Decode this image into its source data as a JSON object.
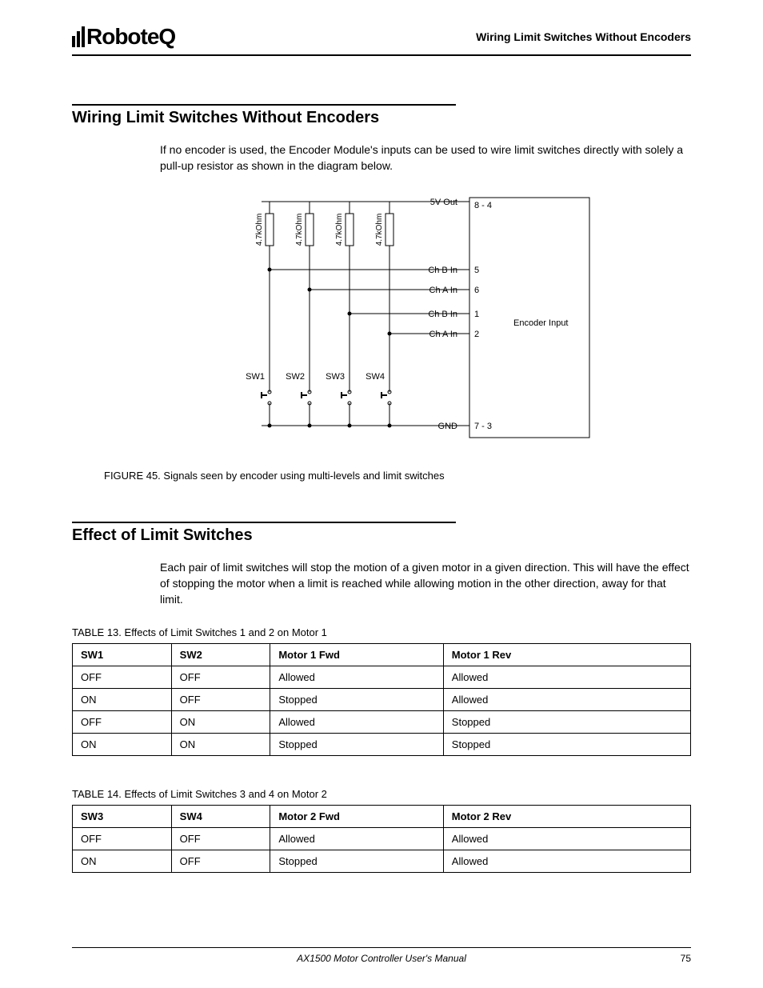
{
  "header": {
    "logo_text": "RoboteQ",
    "subtitle": "Wiring Limit Switches Without Encoders"
  },
  "section1": {
    "title": "Wiring Limit Switches Without Encoders",
    "body": "If no encoder is used, the Encoder Module's inputs can be used to wire limit switches directly with solely a pull-up resistor as shown in the diagram below."
  },
  "figure": {
    "caption_prefix": "FIGURE 45.",
    "caption_text": "Signals seen by encoder using multi-levels and limit switches",
    "diagram": {
      "resistor_label": "4.7kOhm",
      "resistor_count": 4,
      "switches": [
        "SW1",
        "SW2",
        "SW3",
        "SW4"
      ],
      "rails": [
        {
          "label": "5V Out",
          "pin": "8 - 4"
        },
        {
          "label": "Ch B In",
          "pin": "5"
        },
        {
          "label": "Ch A In",
          "pin": "6"
        },
        {
          "label": "Ch B In",
          "pin": "1"
        },
        {
          "label": "Ch A In",
          "pin": "2"
        },
        {
          "label": "GND",
          "pin": "7 - 3"
        }
      ],
      "side_label": "Encoder Input",
      "colors": {
        "line": "#000000",
        "bg": "#ffffff"
      },
      "line_width": 1
    }
  },
  "section2": {
    "title": "Effect of Limit Switches",
    "body": "Each pair of limit switches will stop the motion of a given motor in a given direction. This will have the effect of stopping the motor when a limit is reached while allowing motion in the other direction, away for that limit."
  },
  "table13": {
    "caption_prefix": "TABLE 13.",
    "caption_text": "Effects of Limit Switches 1 and 2 on Motor 1",
    "columns": [
      "SW1",
      "SW2",
      "Motor 1 Fwd",
      "Motor 1 Rev"
    ],
    "rows": [
      [
        "OFF",
        "OFF",
        "Allowed",
        "Allowed"
      ],
      [
        "ON",
        "OFF",
        "Stopped",
        "Allowed"
      ],
      [
        "OFF",
        "ON",
        "Allowed",
        "Stopped"
      ],
      [
        "ON",
        "ON",
        "Stopped",
        "Stopped"
      ]
    ],
    "col_widths": [
      "16%",
      "16%",
      "28%",
      "40%"
    ]
  },
  "table14": {
    "caption_prefix": "TABLE 14.",
    "caption_text": "Effects of Limit Switches 3 and 4 on Motor 2",
    "columns": [
      "SW3",
      "SW4",
      "Motor 2 Fwd",
      "Motor 2 Rev"
    ],
    "rows": [
      [
        "OFF",
        "OFF",
        "Allowed",
        "Allowed"
      ],
      [
        "ON",
        "OFF",
        "Stopped",
        "Allowed"
      ]
    ],
    "col_widths": [
      "16%",
      "16%",
      "28%",
      "40%"
    ]
  },
  "footer": {
    "title": "AX1500 Motor Controller User's Manual",
    "page": "75"
  }
}
